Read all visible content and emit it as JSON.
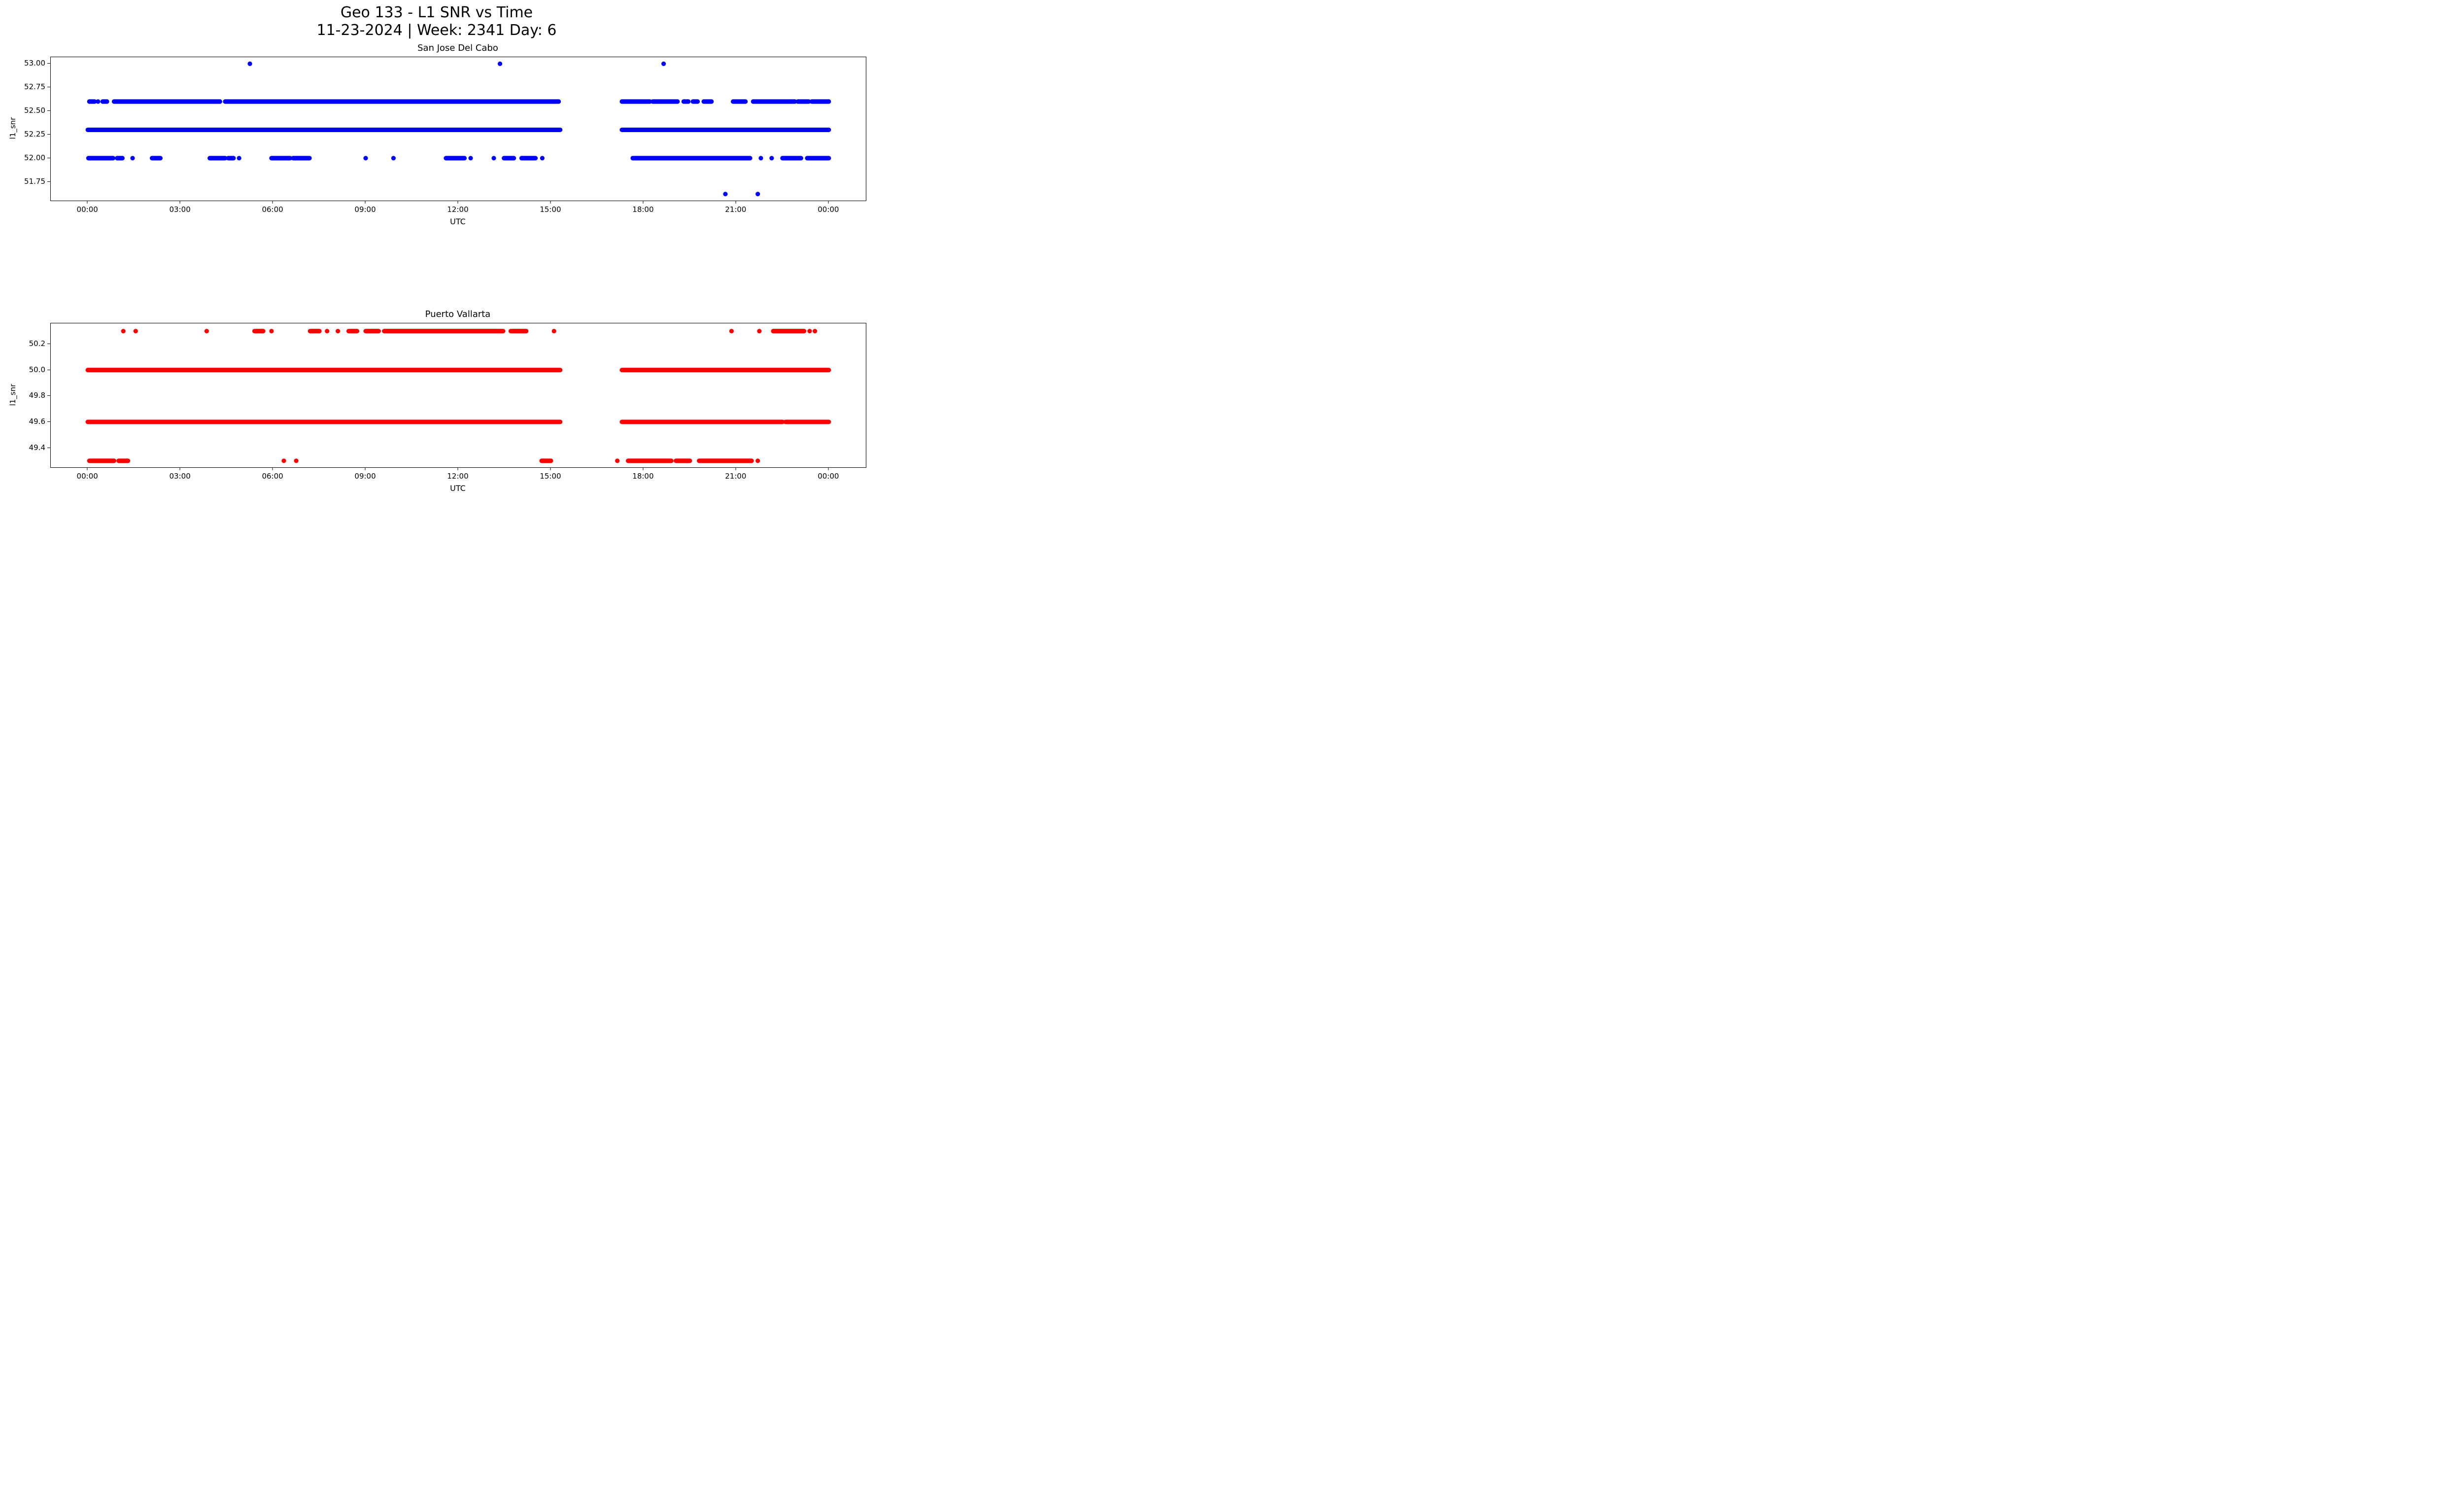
{
  "figure": {
    "title": "Geo 133 - L1 SNR vs Time",
    "subtitle": "11-23-2024 | Week: 2341 Day: 6"
  },
  "chart_data": [
    {
      "type": "scatter",
      "title": "San Jose Del Cabo",
      "xlabel": "UTC",
      "ylabel": "l1_snr",
      "color": "#0000ff",
      "legend": "none",
      "grid": false,
      "xlim": [
        -1.2,
        25.2
      ],
      "ylim": [
        51.55,
        53.07
      ],
      "xticks": {
        "hours": [
          0,
          3,
          6,
          9,
          12,
          15,
          18,
          21,
          24
        ],
        "labels": [
          "00:00",
          "03:00",
          "06:00",
          "09:00",
          "12:00",
          "15:00",
          "18:00",
          "21:00",
          "00:00"
        ]
      },
      "yticks": [
        53.0,
        52.75,
        52.5,
        52.25,
        52.0,
        51.75
      ],
      "ytick_labels": [
        "53.00",
        "52.75",
        "52.50",
        "52.25",
        "52.00",
        "51.75"
      ],
      "bands": [
        {
          "y": 53.0,
          "segments": [],
          "points": [
            5.25,
            13.35,
            18.65
          ]
        },
        {
          "y": 52.6,
          "segments": [
            [
              0.05,
              0.22
            ],
            [
              0.48,
              0.62
            ],
            [
              0.85,
              4.28
            ],
            [
              4.45,
              15.25
            ],
            [
              17.3,
              18.2
            ],
            [
              18.3,
              19.1
            ],
            [
              19.3,
              19.45
            ],
            [
              19.6,
              19.75
            ],
            [
              19.95,
              20.2
            ],
            [
              20.9,
              21.3
            ],
            [
              21.55,
              22.9
            ],
            [
              23.0,
              23.35
            ],
            [
              23.45,
              24.0
            ]
          ],
          "points": [
            0.33
          ]
        },
        {
          "y": 52.3,
          "segments": [
            [
              0.0,
              15.3
            ],
            [
              17.3,
              24.0
            ]
          ],
          "points": []
        },
        {
          "y": 52.0,
          "segments": [
            [
              0.02,
              0.82
            ],
            [
              0.95,
              1.12
            ],
            [
              2.08,
              2.35
            ],
            [
              3.95,
              4.45
            ],
            [
              4.55,
              4.72
            ],
            [
              5.95,
              6.55
            ],
            [
              6.65,
              7.18
            ],
            [
              11.6,
              12.2
            ],
            [
              13.48,
              13.8
            ],
            [
              14.05,
              14.5
            ],
            [
              17.65,
              21.45
            ],
            [
              22.5,
              23.1
            ],
            [
              23.3,
              24.0
            ]
          ],
          "points": [
            1.45,
            4.9,
            9.0,
            9.9,
            12.4,
            13.15,
            14.72,
            21.8,
            22.15
          ]
        },
        {
          "y": 51.62,
          "segments": [],
          "points": [
            20.65,
            21.7
          ]
        }
      ]
    },
    {
      "type": "scatter",
      "title": "Puerto Vallarta",
      "xlabel": "UTC",
      "ylabel": "l1_snr",
      "color": "#ff0000",
      "legend": "none",
      "grid": false,
      "xlim": [
        -1.2,
        25.2
      ],
      "ylim": [
        49.25,
        50.36
      ],
      "xticks": {
        "hours": [
          0,
          3,
          6,
          9,
          12,
          15,
          18,
          21,
          24
        ],
        "labels": [
          "00:00",
          "03:00",
          "06:00",
          "09:00",
          "12:00",
          "15:00",
          "18:00",
          "21:00",
          "00:00"
        ]
      },
      "yticks": [
        50.2,
        50.0,
        49.8,
        49.6,
        49.4
      ],
      "ytick_labels": [
        "50.2",
        "50.0",
        "49.8",
        "49.6",
        "49.4"
      ],
      "bands": [
        {
          "y": 50.3,
          "segments": [
            [
              5.4,
              5.68
            ],
            [
              7.2,
              7.5
            ],
            [
              8.45,
              8.72
            ],
            [
              9.0,
              9.42
            ],
            [
              9.6,
              13.45
            ],
            [
              13.7,
              14.2
            ],
            [
              22.2,
              23.2
            ]
          ],
          "points": [
            1.15,
            1.55,
            3.85,
            5.95,
            7.75,
            8.1,
            15.1,
            20.85,
            21.75,
            23.38,
            23.55
          ]
        },
        {
          "y": 50.0,
          "segments": [
            [
              0.0,
              15.3
            ],
            [
              17.3,
              24.0
            ]
          ],
          "points": []
        },
        {
          "y": 49.6,
          "segments": [
            [
              0.0,
              15.3
            ],
            [
              17.3,
              22.5
            ],
            [
              22.6,
              24.0
            ]
          ],
          "points": []
        },
        {
          "y": 49.3,
          "segments": [
            [
              0.05,
              0.85
            ],
            [
              1.0,
              1.3
            ],
            [
              14.7,
              15.0
            ],
            [
              17.5,
              18.9
            ],
            [
              19.05,
              19.5
            ],
            [
              19.8,
              21.5
            ]
          ],
          "points": [
            6.35,
            6.75,
            17.15,
            21.7
          ]
        }
      ]
    }
  ]
}
